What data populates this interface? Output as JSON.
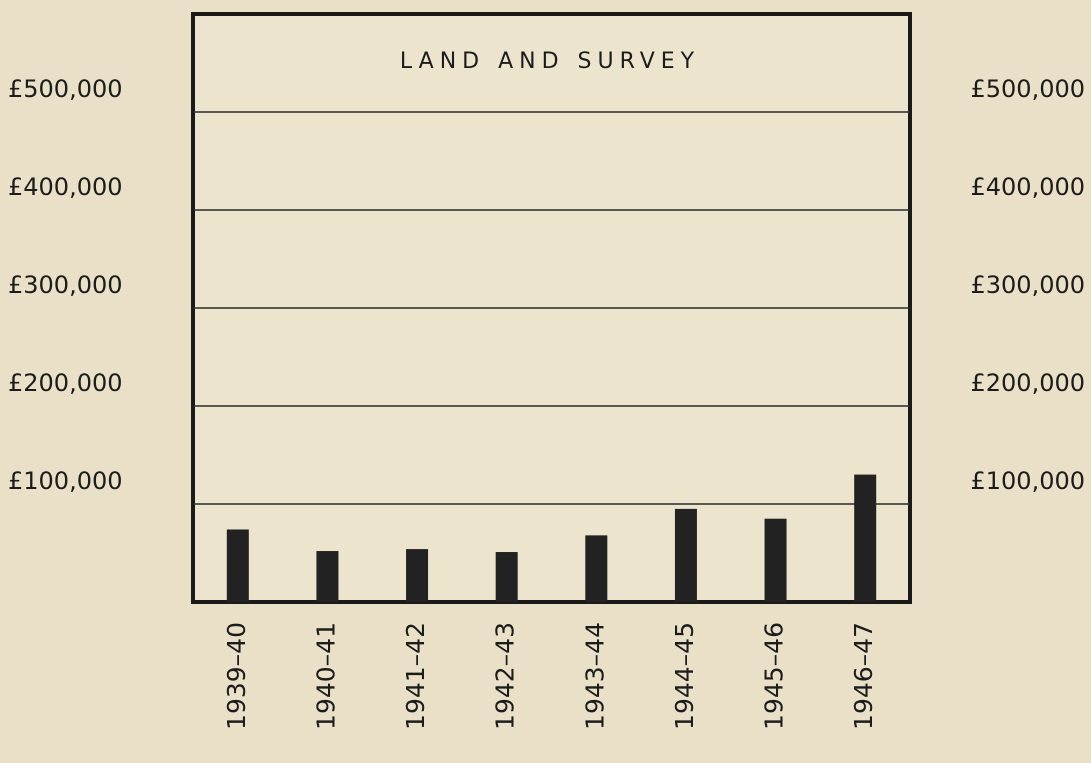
{
  "chart_data": {
    "type": "bar",
    "title": "LAND AND SURVEY",
    "categories": [
      "1939–40",
      "1940–41",
      "1941–42",
      "1942–43",
      "1943–44",
      "1944–45",
      "1945–46",
      "1946–47"
    ],
    "values": [
      74000,
      52000,
      54000,
      51000,
      68000,
      95000,
      85000,
      130000
    ],
    "color": "#222222",
    "ylim": [
      0,
      600000
    ],
    "yticks": [
      {
        "value": 100000,
        "label": "£100,000"
      },
      {
        "value": 200000,
        "label": "£200,000"
      },
      {
        "value": 300000,
        "label": "£300,000"
      },
      {
        "value": 400000,
        "label": "£400,000"
      },
      {
        "value": 500000,
        "label": "£500,000"
      }
    ],
    "grid": true
  }
}
